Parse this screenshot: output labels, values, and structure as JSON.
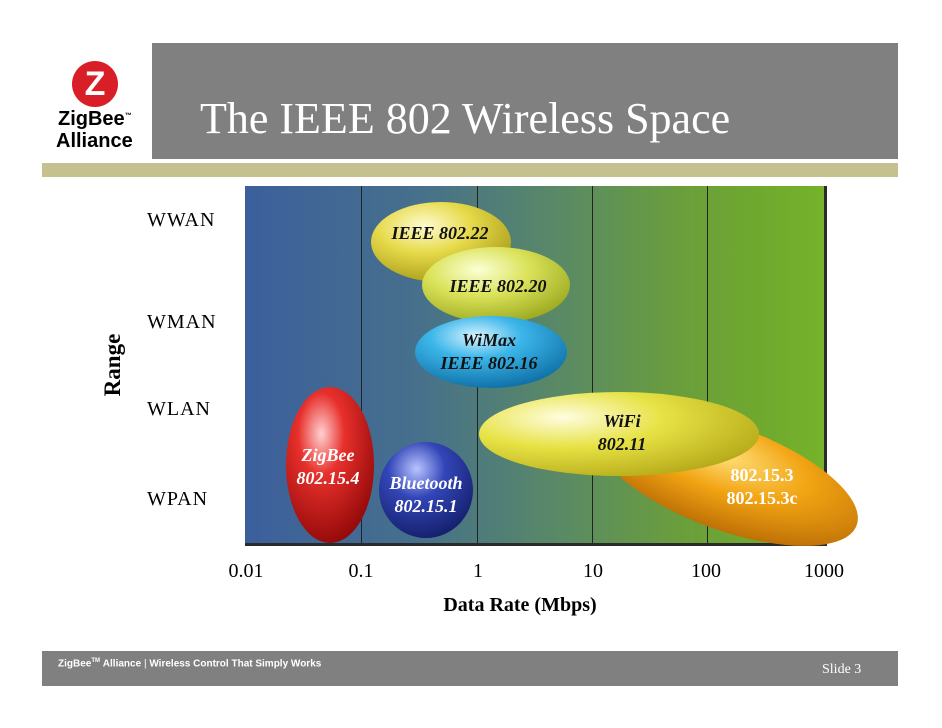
{
  "title": "The IEEE 802 Wireless Space",
  "logo": {
    "brand": "ZigBee",
    "tm": "™",
    "subtitle": "Alliance",
    "glyph": "Z"
  },
  "range_axis": {
    "label": "Range",
    "levels": [
      "WWAN",
      "WMAN",
      "WLAN",
      "WPAN"
    ]
  },
  "x_axis": {
    "label": "Data Rate (Mbps)",
    "ticks": [
      "0.01",
      "0.1",
      "1",
      "10",
      "100",
      "1000"
    ]
  },
  "standards": {
    "ieee80222": {
      "line1": "IEEE 802.22",
      "color": "#d9cb38"
    },
    "ieee80220": {
      "line1": "IEEE 802.20",
      "color": "#d8df52"
    },
    "wimax": {
      "line1": "WiMax",
      "line2": "IEEE 802.16",
      "color": "#2ba6dd"
    },
    "wifi": {
      "line1": "WiFi",
      "line2": "802.11",
      "color": "#e2de3a"
    },
    "uwb": {
      "line1": "802.15.3",
      "line2": "802.15.3c",
      "color": "#f0a112"
    },
    "zigbee": {
      "line1": "ZigBee",
      "line2": "802.15.4",
      "color": "#d41a1a"
    },
    "bluetooth": {
      "line1": "Bluetooth",
      "line2": "802.15.1",
      "color": "#2a3fa8"
    }
  },
  "footer": {
    "brand": "ZigBee",
    "tm": "TM",
    "org": "Alliance",
    "separator": "|",
    "tagline": "Wireless Control That Simply Works",
    "slide": "Slide 3"
  }
}
